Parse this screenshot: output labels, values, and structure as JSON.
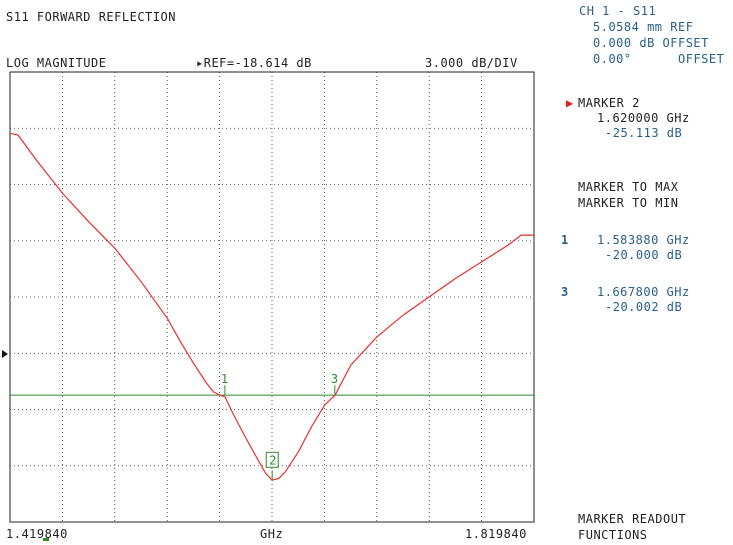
{
  "header": {
    "title": "S11 FORWARD REFLECTION",
    "format": "LOG MAGNITUDE",
    "ref_label": "▸REF=-18.614 dB",
    "scale": "3.000 dB/DIV"
  },
  "channel": {
    "line1": "CH 1 - S11",
    "line2": "5.0584 mm REF",
    "line3": "0.000 dB OFFSET",
    "line4_value": "0.00°",
    "line4_label": "OFFSET"
  },
  "active_marker": {
    "arrow": "▶",
    "title": "MARKER 2",
    "freq": "1.620000 GHz",
    "value": "-25.113 dB"
  },
  "menu": {
    "marker_to_max": "MARKER TO MAX",
    "marker_to_min": "MARKER TO MIN",
    "readout_1": "MARKER READOUT",
    "readout_2": "FUNCTIONS"
  },
  "marker_list": [
    {
      "num": "1",
      "freq": "1.583880 GHz",
      "value": "-20.000 dB"
    },
    {
      "num": "3",
      "freq": "1.667800 GHz",
      "value": "-20.002 dB"
    }
  ],
  "axis": {
    "start": "1.419840",
    "unit": "GHz",
    "stop": "1.819840"
  },
  "colors": {
    "trace": "#e8302a",
    "limit_line": "#2e8b2e",
    "marker": "#2e8b2e",
    "text_blue": "#2a5f8a"
  },
  "chart_data": {
    "type": "line",
    "x_range": [
      1.41984,
      1.81984
    ],
    "ylim": [
      -27.614,
      -0.614
    ],
    "y_per_div": 3.0,
    "ref_value": -18.614,
    "limit_line_value": -20.0,
    "series": [
      {
        "x": [
          1.41984,
          1.426,
          1.44,
          1.46,
          1.48,
          1.5,
          1.52,
          1.54,
          1.55,
          1.56,
          1.57,
          1.575,
          1.58,
          1.584,
          1.59,
          1.6,
          1.61,
          1.615,
          1.62,
          1.625,
          1.63,
          1.64,
          1.65,
          1.66,
          1.668,
          1.68,
          1.7,
          1.72,
          1.74,
          1.76,
          1.78,
          1.8,
          1.81,
          1.81984
        ],
        "y": [
          -4.3,
          -4.4,
          -5.9,
          -7.9,
          -9.6,
          -11.2,
          -13.2,
          -15.4,
          -16.8,
          -18.1,
          -19.3,
          -19.8,
          -20.0,
          -20.1,
          -21.1,
          -22.6,
          -24.0,
          -24.7,
          -25.1,
          -25.0,
          -24.6,
          -23.4,
          -21.9,
          -20.6,
          -20.0,
          -18.2,
          -16.5,
          -15.2,
          -14.1,
          -13.0,
          -12.0,
          -11.0,
          -10.4,
          -10.4
        ]
      }
    ],
    "markers": [
      {
        "label": "1",
        "x": 1.58388,
        "y": -20.0
      },
      {
        "label": "2",
        "x": 1.62,
        "y": -25.113
      },
      {
        "label": "3",
        "x": 1.6678,
        "y": -20.002
      }
    ]
  }
}
